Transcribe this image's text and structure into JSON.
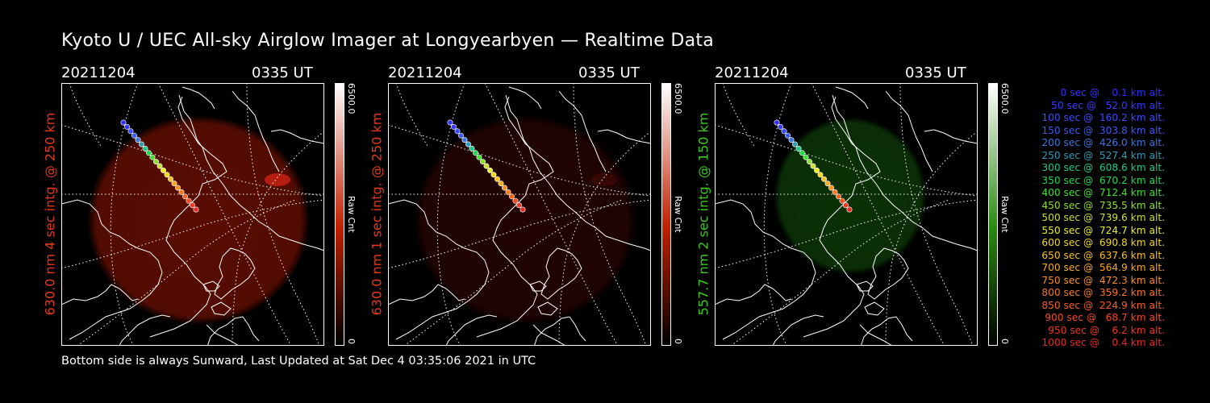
{
  "title": "Kyoto U / UEC All-sky Airglow Imager at Longyearbyen — Realtime Data",
  "footer": "Bottom side is always Sunward, Last Updated at Sat Dec  4 03:35:06 2021 in UTC",
  "panels": [
    {
      "date": "20211204",
      "time": "0335 UT",
      "ylabel": "630.0 nm 4 sec intg. @ 250 km",
      "label_color": "#e03a1a",
      "glow_color": "#6a0f02",
      "glow_opacity": 0.85,
      "cbar_max": "6500.0",
      "cbar_min": "0",
      "cbar_unit": "Raw Cnt",
      "cbar_color": "#c02000"
    },
    {
      "date": "20211204",
      "time": "0335 UT",
      "ylabel": "630.0 nm 1 sec intg. @ 250 km",
      "label_color": "#e03a1a",
      "glow_color": "#2a0502",
      "glow_opacity": 0.8,
      "cbar_max": "6500.0",
      "cbar_min": "0",
      "cbar_unit": "Raw Cnt",
      "cbar_color": "#c02000"
    },
    {
      "date": "20211204",
      "time": "0335 UT",
      "ylabel": "557.7 nm 2 sec intg. @ 150 km",
      "label_color": "#3ec81e",
      "glow_color": "#0d3a08",
      "glow_opacity": 0.85,
      "cbar_max": "6500.0",
      "cbar_min": "0",
      "cbar_unit": "Raw Cnt",
      "cbar_color": "#2a8a10"
    }
  ],
  "chart_data": {
    "type": "scatter",
    "title": "Kyoto U / UEC All-sky Airglow Imager at Longyearbyen — Realtime Data",
    "series_name": "Rocket trajectory (time vs altitude)",
    "x_label": "sec",
    "y_label": "km alt.",
    "points": [
      {
        "t": 0,
        "alt": 0.1,
        "label": "   0 sec @    0.1 km alt.",
        "color": "#3030ff"
      },
      {
        "t": 50,
        "alt": 52.0,
        "label": "  50 sec @   52.0 km alt.",
        "color": "#3b3bff"
      },
      {
        "t": 100,
        "alt": 160.2,
        "label": " 100 sec @  160.2 km alt.",
        "color": "#3a4cff"
      },
      {
        "t": 150,
        "alt": 303.8,
        "label": " 150 sec @  303.8 km alt.",
        "color": "#3c5cf0"
      },
      {
        "t": 200,
        "alt": 426.0,
        "label": " 200 sec @  426.0 km alt.",
        "color": "#3a78e0"
      },
      {
        "t": 250,
        "alt": 527.4,
        "label": " 250 sec @  527.4 km alt.",
        "color": "#2f9bb8"
      },
      {
        "t": 300,
        "alt": 608.6,
        "label": " 300 sec @  608.6 km alt.",
        "color": "#22c88a"
      },
      {
        "t": 350,
        "alt": 670.2,
        "label": " 350 sec @  670.2 km alt.",
        "color": "#22d84a"
      },
      {
        "t": 400,
        "alt": 712.4,
        "label": " 400 sec @  712.4 km alt.",
        "color": "#44e030"
      },
      {
        "t": 450,
        "alt": 735.5,
        "label": " 450 sec @  735.5 km alt.",
        "color": "#8de030"
      },
      {
        "t": 500,
        "alt": 739.6,
        "label": " 500 sec @  739.6 km alt.",
        "color": "#c8e030"
      },
      {
        "t": 550,
        "alt": 724.7,
        "label": " 550 sec @  724.7 km alt.",
        "color": "#ecec28"
      },
      {
        "t": 600,
        "alt": 690.8,
        "label": " 600 sec @  690.8 km alt.",
        "color": "#f5d820"
      },
      {
        "t": 650,
        "alt": 637.6,
        "label": " 650 sec @  637.6 km alt.",
        "color": "#f8c020"
      },
      {
        "t": 700,
        "alt": 564.9,
        "label": " 700 sec @  564.9 km alt.",
        "color": "#f8a820"
      },
      {
        "t": 750,
        "alt": 472.3,
        "label": " 750 sec @  472.3 km alt.",
        "color": "#f89020"
      },
      {
        "t": 800,
        "alt": 359.2,
        "label": " 800 sec @  359.2 km alt.",
        "color": "#f87820"
      },
      {
        "t": 850,
        "alt": 224.9,
        "label": " 850 sec @  224.9 km alt.",
        "color": "#f86020"
      },
      {
        "t": 900,
        "alt": 68.7,
        "label": " 900 sec @   68.7 km alt.",
        "color": "#f84a20"
      },
      {
        "t": 950,
        "alt": 6.2,
        "label": " 950 sec @    6.2 km alt.",
        "color": "#f03820"
      },
      {
        "t": 1000,
        "alt": 0.4,
        "label": "1000 sec @    0.4 km alt.",
        "color": "#e82a20"
      }
    ]
  }
}
